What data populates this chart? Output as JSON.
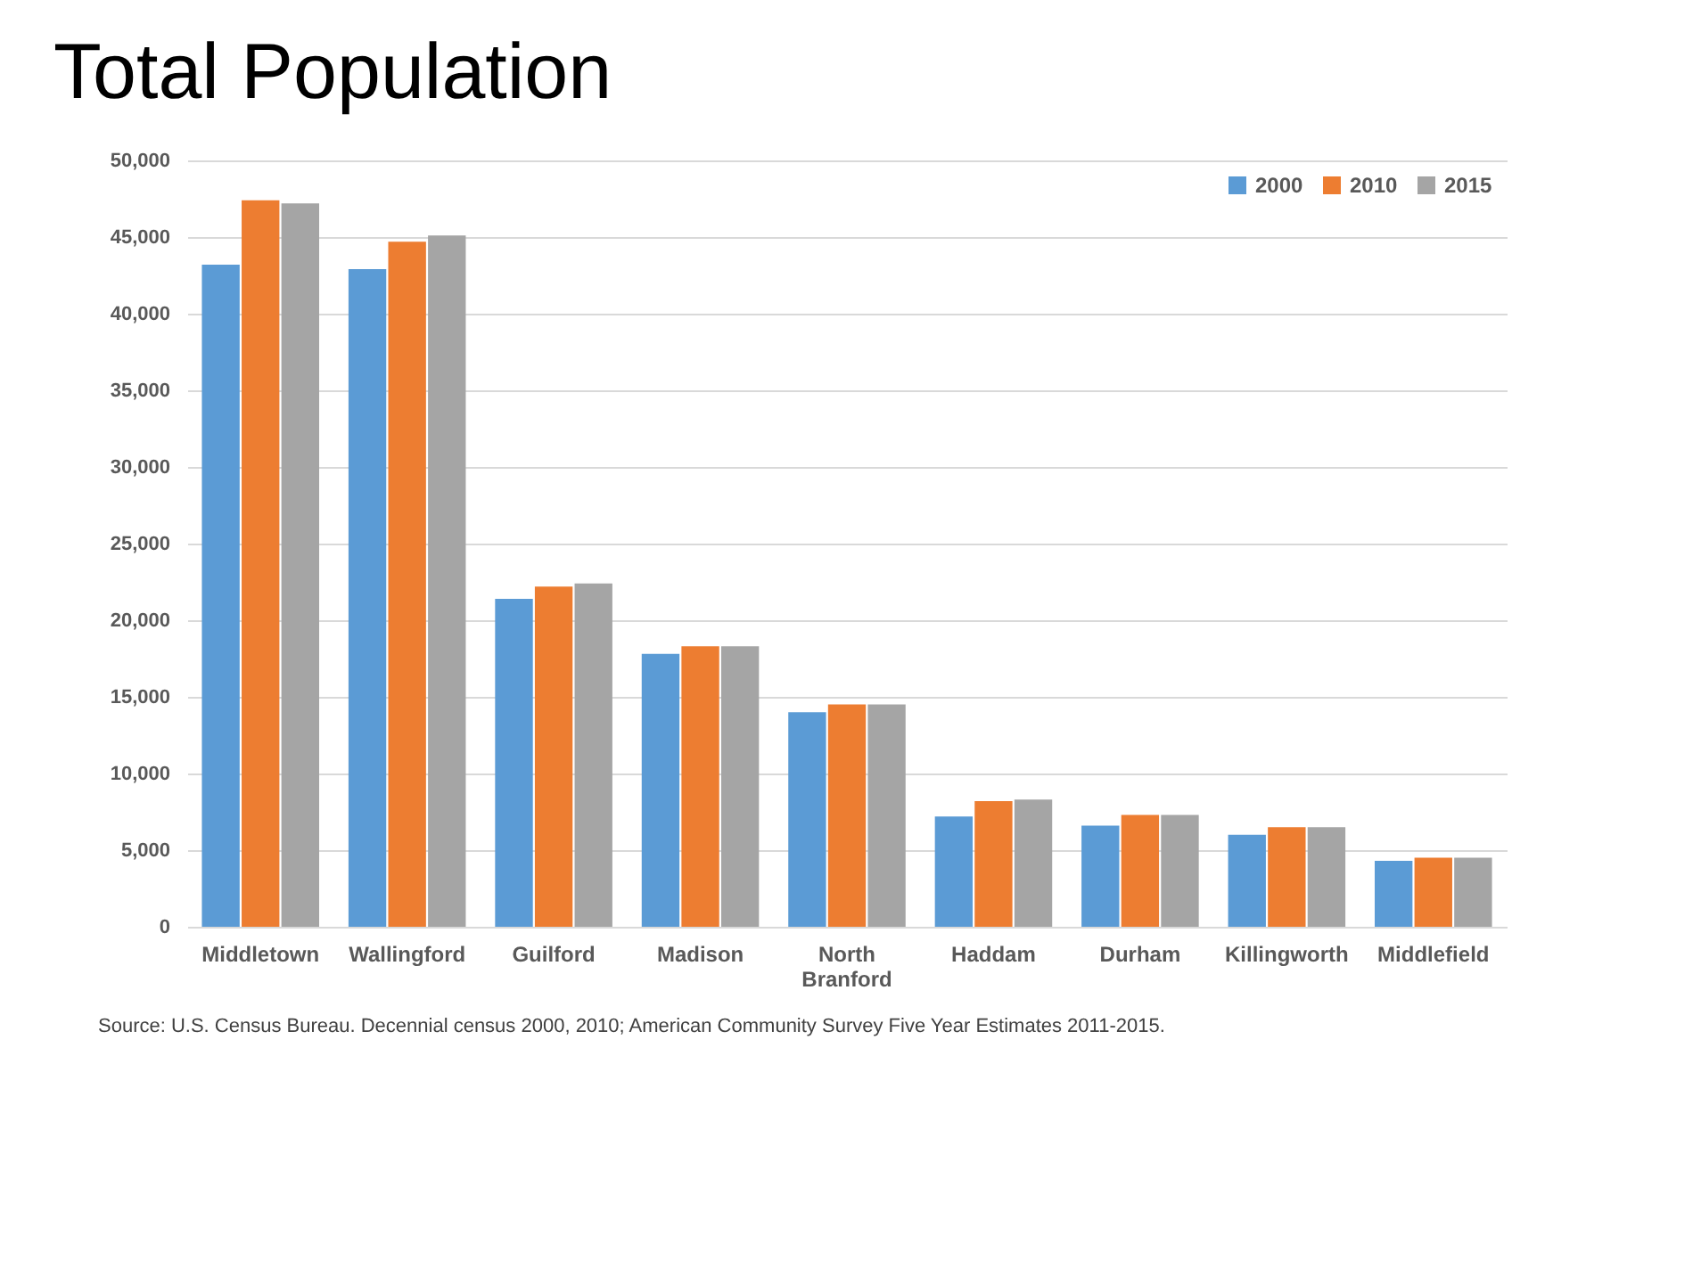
{
  "chart_data": {
    "type": "bar",
    "title": "Total Population",
    "categories": [
      "Middletown",
      "Wallingford",
      "Guilford",
      "Madison",
      "North Branford",
      "Haddam",
      "Durham",
      "Killingworth",
      "Middlefield"
    ],
    "series": [
      {
        "name": "2000",
        "color": "#5b9bd5",
        "values": [
          43200,
          42900,
          21400,
          17800,
          14000,
          7200,
          6600,
          6000,
          4300
        ]
      },
      {
        "name": "2010",
        "color": "#ed7d31",
        "values": [
          47400,
          44700,
          22200,
          18300,
          14500,
          8200,
          7300,
          6500,
          4500
        ]
      },
      {
        "name": "2015",
        "color": "#a5a5a5",
        "values": [
          47200,
          45100,
          22400,
          18300,
          14500,
          8300,
          7300,
          6500,
          4500
        ]
      }
    ],
    "ylim": [
      0,
      50000
    ],
    "yticks": [
      {
        "value": 0,
        "label": "0"
      },
      {
        "value": 5000,
        "label": "5,000"
      },
      {
        "value": 10000,
        "label": "10,000"
      },
      {
        "value": 15000,
        "label": "15,000"
      },
      {
        "value": 20000,
        "label": "20,000"
      },
      {
        "value": 25000,
        "label": "25,000"
      },
      {
        "value": 30000,
        "label": "30,000"
      },
      {
        "value": 35000,
        "label": "35,000"
      },
      {
        "value": 40000,
        "label": "40,000"
      },
      {
        "value": 45000,
        "label": "45,000"
      },
      {
        "value": 50000,
        "label": "50,000"
      }
    ],
    "grid": "y",
    "legend": "top right",
    "annotations": [
      "Source: U.S. Census Bureau. Decennial census 2000, 2010; American Community Survey Five Year Estimates 2011-2015."
    ]
  }
}
